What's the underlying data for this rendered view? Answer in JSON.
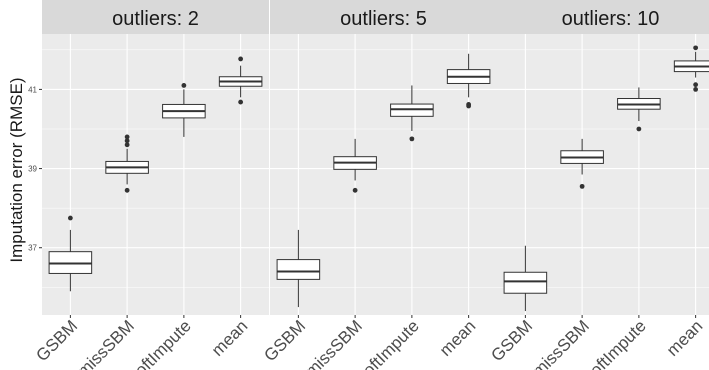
{
  "chart_data": {
    "type": "boxplot",
    "ylabel": "Imputation error (RMSE)",
    "ylim": [
      35.3,
      42.4
    ],
    "yticks": [
      37,
      39,
      41
    ],
    "ytick_labels": [
      "37",
      "39",
      "41"
    ],
    "categories": [
      "GSBM",
      "missSBM",
      "softImpute",
      "mean"
    ],
    "grid": true,
    "panels": [
      {
        "label": "outliers: 2",
        "boxes": [
          {
            "category": "GSBM",
            "min": 35.9,
            "q1": 36.35,
            "median": 36.6,
            "q3": 36.9,
            "max": 37.45,
            "outliers": [
              37.75
            ]
          },
          {
            "category": "missSBM",
            "min": 38.6,
            "q1": 38.88,
            "median": 39.03,
            "q3": 39.18,
            "max": 39.5,
            "outliers": [
              39.6,
              39.7,
              39.8,
              38.45
            ]
          },
          {
            "category": "softImpute",
            "min": 39.8,
            "q1": 40.28,
            "median": 40.45,
            "q3": 40.62,
            "max": 41.0,
            "outliers": [
              41.1
            ]
          },
          {
            "category": "mean",
            "min": 40.8,
            "q1": 41.08,
            "median": 41.2,
            "q3": 41.32,
            "max": 41.6,
            "outliers": [
              41.77,
              40.68
            ]
          }
        ]
      },
      {
        "label": "outliers: 5",
        "boxes": [
          {
            "category": "GSBM",
            "min": 35.5,
            "q1": 36.2,
            "median": 36.4,
            "q3": 36.7,
            "max": 37.45,
            "outliers": []
          },
          {
            "category": "missSBM",
            "min": 38.7,
            "q1": 38.98,
            "median": 39.15,
            "q3": 39.3,
            "max": 39.75,
            "outliers": [
              38.45
            ]
          },
          {
            "category": "softImpute",
            "min": 39.95,
            "q1": 40.32,
            "median": 40.5,
            "q3": 40.63,
            "max": 41.1,
            "outliers": [
              39.75
            ]
          },
          {
            "category": "mean",
            "min": 40.8,
            "q1": 41.15,
            "median": 41.32,
            "q3": 41.5,
            "max": 41.9,
            "outliers": [
              40.62,
              40.58
            ]
          }
        ]
      },
      {
        "label": "outliers: 10",
        "boxes": [
          {
            "category": "GSBM",
            "min": 35.4,
            "q1": 35.85,
            "median": 36.15,
            "q3": 36.38,
            "max": 37.05,
            "outliers": []
          },
          {
            "category": "missSBM",
            "min": 38.85,
            "q1": 39.13,
            "median": 39.28,
            "q3": 39.45,
            "max": 39.75,
            "outliers": [
              38.55
            ]
          },
          {
            "category": "softImpute",
            "min": 40.2,
            "q1": 40.5,
            "median": 40.62,
            "q3": 40.77,
            "max": 41.05,
            "outliers": [
              40.0
            ]
          },
          {
            "category": "mean",
            "min": 41.3,
            "q1": 41.45,
            "median": 41.58,
            "q3": 41.72,
            "max": 41.95,
            "outliers": [
              42.05,
              41.12,
              41.0
            ]
          }
        ]
      }
    ]
  },
  "colors": {
    "panel_bg": "#ebebeb",
    "strip_bg": "#d9d9d9",
    "grid_major": "#ffffff",
    "box_fill": "#ffffff",
    "box_line": "#333333"
  }
}
